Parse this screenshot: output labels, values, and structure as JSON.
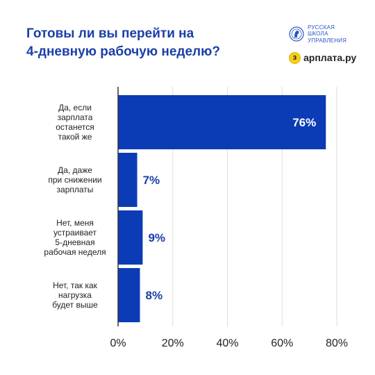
{
  "header": {
    "title_lines": [
      "Готовы ли вы перейти на",
      "4-дневную рабочую неделю?"
    ]
  },
  "brands": {
    "school_lines": [
      "РУССКАЯ",
      "ШКОЛА",
      "УПРАВЛЕНИЯ"
    ],
    "school_icon": "rsu-emblem-icon",
    "zarplata_glyph": "з",
    "zarplata_text": "арплата.ру",
    "zarplata_icon": "zarplata-coin-icon"
  },
  "colors": {
    "bar": "#0b3cb5",
    "value_on_bar": "#ffffff",
    "value_off_bar": "#1a3fa8",
    "title": "#1a3fa8"
  },
  "chart_data": {
    "type": "bar",
    "orientation": "horizontal",
    "categories": [
      [
        "Да, если",
        "зарплата",
        "останется",
        "такой же"
      ],
      [
        "Да, даже",
        "при снижении",
        "зарплаты"
      ],
      [
        "Нет, меня",
        "устраивает",
        "5-дневная",
        "рабочая неделя"
      ],
      [
        "Нет, так как",
        "нагрузка",
        "будет выше"
      ]
    ],
    "values": [
      76,
      7,
      9,
      8
    ],
    "value_labels": [
      "76%",
      "7%",
      "9%",
      "8%"
    ],
    "xlim": [
      0,
      80
    ],
    "xticks": [
      0,
      20,
      40,
      60,
      80
    ],
    "xtick_labels": [
      "0%",
      "20%",
      "40%",
      "60%",
      "80%"
    ],
    "grid": "vertical",
    "title": "Готовы ли вы перейти на 4-дневную рабочую неделю?"
  }
}
